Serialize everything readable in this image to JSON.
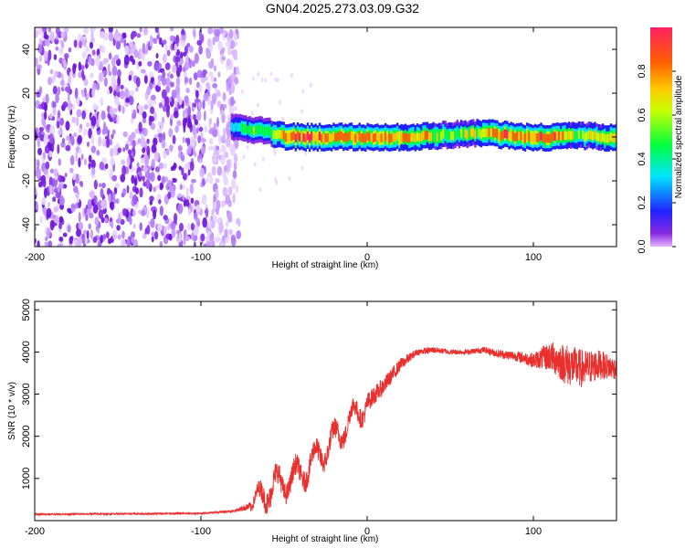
{
  "title": "GN04.2025.273.03.09.G32",
  "chart_data": [
    {
      "type": "heatmap",
      "name": "spectrogram",
      "xlabel": "Height of straight line (km)",
      "ylabel": "Frequency (Hz)",
      "xlim": [
        -200,
        150
      ],
      "ylim": [
        -50,
        50
      ],
      "xticks": [
        -200,
        -100,
        0,
        100
      ],
      "yticks": [
        -40,
        -20,
        0,
        20,
        40
      ],
      "noise_region_x": [
        -200,
        -78
      ],
      "signal_band_hz": 0,
      "signal_trace": [
        {
          "x": -82,
          "freq": 5,
          "amp": 0.35
        },
        {
          "x": -76,
          "freq": 4,
          "amp": 0.45
        },
        {
          "x": -70,
          "freq": 3,
          "amp": 0.55
        },
        {
          "x": -62,
          "freq": 3,
          "amp": 0.5
        },
        {
          "x": -55,
          "freq": 1,
          "amp": 0.7
        },
        {
          "x": -45,
          "freq": 0,
          "amp": 0.95
        },
        {
          "x": -30,
          "freq": 0,
          "amp": 0.9
        },
        {
          "x": -10,
          "freq": 0,
          "amp": 0.85
        },
        {
          "x": 10,
          "freq": 0,
          "amp": 0.85
        },
        {
          "x": 30,
          "freq": 0,
          "amp": 0.8
        },
        {
          "x": 50,
          "freq": 1,
          "amp": 0.6
        },
        {
          "x": 70,
          "freq": 2,
          "amp": 0.7
        },
        {
          "x": 80,
          "freq": 1,
          "amp": 0.9
        },
        {
          "x": 95,
          "freq": 0,
          "amp": 0.85
        },
        {
          "x": 110,
          "freq": 0,
          "amp": 0.95
        },
        {
          "x": 125,
          "freq": 1,
          "amp": 0.6
        },
        {
          "x": 140,
          "freq": 0,
          "amp": 0.7
        },
        {
          "x": 150,
          "freq": 0,
          "amp": 0.75
        }
      ],
      "colorbar": {
        "label": "Normalized spectral amplitude",
        "range": [
          0,
          1
        ],
        "ticks": [
          "0.0",
          "0.2",
          "0.4",
          "0.6",
          "0.8"
        ]
      }
    },
    {
      "type": "line",
      "name": "snr",
      "xlabel": "Height of straight line (km)",
      "ylabel": "SNR (10 * v/v)",
      "xlim": [
        -200,
        150
      ],
      "ylim": [
        0,
        5200
      ],
      "xticks": [
        -200,
        -100,
        0,
        100
      ],
      "yticks": [
        1000,
        2000,
        3000,
        4000,
        5000
      ],
      "color": "#e8302e",
      "series": [
        {
          "name": "SNR",
          "x": [
            -200,
            -150,
            -100,
            -80,
            -70,
            -60,
            -50,
            -40,
            -30,
            -20,
            -10,
            0,
            10,
            20,
            30,
            40,
            50,
            60,
            70,
            80,
            90,
            100,
            110,
            120,
            130,
            140,
            150
          ],
          "y": [
            150,
            160,
            170,
            230,
            350,
            750,
            900,
            1100,
            1500,
            1900,
            2400,
            2800,
            3200,
            3700,
            4000,
            4050,
            4000,
            4000,
            4050,
            3950,
            3900,
            3800,
            3900,
            3700,
            3600,
            3700,
            3600
          ],
          "jitter": [
            40,
            40,
            40,
            60,
            200,
            600,
            500,
            500,
            500,
            500,
            450,
            450,
            400,
            300,
            150,
            150,
            120,
            120,
            150,
            200,
            250,
            350,
            700,
            1000,
            900,
            700,
            500
          ]
        }
      ]
    }
  ]
}
